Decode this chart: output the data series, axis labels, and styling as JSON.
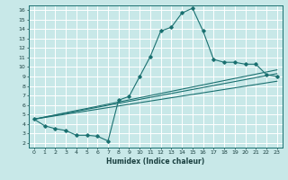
{
  "xlabel": "Humidex (Indice chaleur)",
  "bg_color": "#c8e8e8",
  "grid_color": "#ffffff",
  "line_color": "#1a7070",
  "xlim": [
    -0.5,
    23.5
  ],
  "ylim": [
    1.5,
    16.5
  ],
  "xticks": [
    0,
    1,
    2,
    3,
    4,
    5,
    6,
    7,
    8,
    9,
    10,
    11,
    12,
    13,
    14,
    15,
    16,
    17,
    18,
    19,
    20,
    21,
    22,
    23
  ],
  "yticks": [
    2,
    3,
    4,
    5,
    6,
    7,
    8,
    9,
    10,
    11,
    12,
    13,
    14,
    15,
    16
  ],
  "curve1_x": [
    0,
    1,
    2,
    3,
    4,
    5,
    6,
    7,
    8,
    9,
    10,
    11,
    12,
    13,
    14,
    15,
    16,
    17,
    18,
    19,
    20,
    21,
    22,
    23
  ],
  "curve1_y": [
    4.5,
    3.8,
    3.5,
    3.3,
    2.8,
    2.8,
    2.7,
    2.2,
    6.5,
    6.9,
    9.0,
    11.1,
    13.8,
    14.2,
    15.7,
    16.2,
    13.8,
    10.8,
    10.5,
    10.5,
    10.3,
    10.3,
    9.2,
    9.0
  ],
  "line1_x": [
    0,
    23
  ],
  "line1_y": [
    4.5,
    9.3
  ],
  "line2_x": [
    0,
    23
  ],
  "line2_y": [
    4.5,
    8.5
  ],
  "line3_x": [
    0,
    23
  ],
  "line3_y": [
    4.5,
    9.7
  ]
}
